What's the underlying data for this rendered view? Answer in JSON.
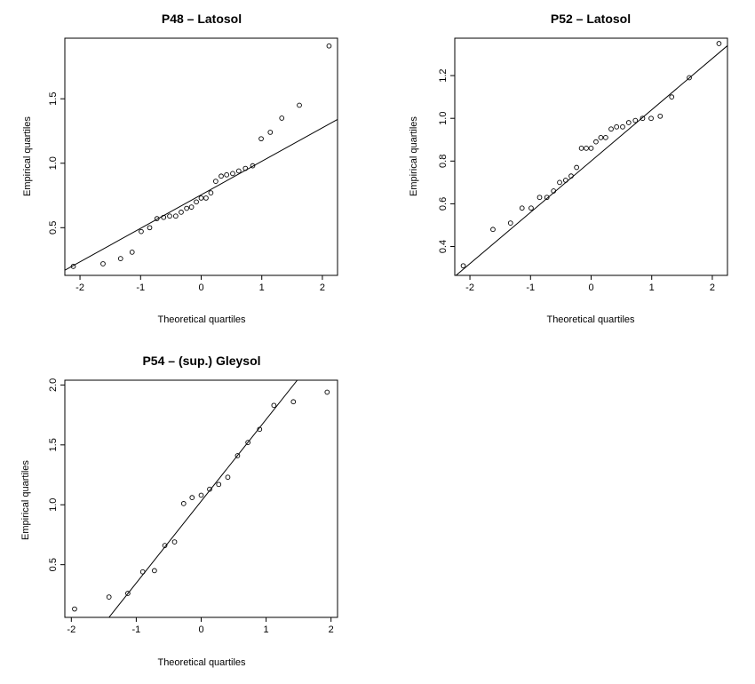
{
  "chart_data": [
    {
      "type": "scatter",
      "title": "P48 – Latosol",
      "xlabel": "Theoretical quartiles",
      "ylabel": "Empirical quartiles",
      "xlim": [
        -2.25,
        2.25
      ],
      "ylim": [
        0.13,
        1.97
      ],
      "xticks": [
        -2,
        -1,
        0,
        1,
        2
      ],
      "xtick_labels": [
        "-2",
        "-1",
        "0",
        "1",
        "2"
      ],
      "yticks": [
        0.5,
        1.0,
        1.5
      ],
      "ytick_labels": [
        "0.5",
        "1.0",
        "1.5"
      ],
      "grid": false,
      "points": {
        "x": [
          -2.11,
          -1.62,
          -1.33,
          -1.14,
          -0.99,
          -0.85,
          -0.73,
          -0.62,
          -0.52,
          -0.42,
          -0.33,
          -0.24,
          -0.16,
          -0.08,
          0.0,
          0.08,
          0.16,
          0.24,
          0.33,
          0.42,
          0.52,
          0.62,
          0.73,
          0.85,
          0.99,
          1.14,
          1.33,
          1.62,
          2.11
        ],
        "y": [
          0.2,
          0.22,
          0.26,
          0.31,
          0.47,
          0.5,
          0.57,
          0.58,
          0.59,
          0.59,
          0.62,
          0.65,
          0.66,
          0.7,
          0.73,
          0.73,
          0.77,
          0.86,
          0.9,
          0.91,
          0.92,
          0.94,
          0.96,
          0.98,
          1.19,
          1.24,
          1.35,
          1.45,
          1.91
        ]
      },
      "reference_line": {
        "x": [
          -2.25,
          2.25
        ],
        "y": [
          0.17,
          1.34
        ]
      }
    },
    {
      "type": "scatter",
      "title": "P52 – Latosol",
      "xlabel": "Theoretical quartiles",
      "ylabel": "Empirical quartiles",
      "xlim": [
        -2.25,
        2.25
      ],
      "ylim": [
        0.265,
        1.375
      ],
      "xticks": [
        -2,
        -1,
        0,
        1,
        2
      ],
      "xtick_labels": [
        "-2",
        "-1",
        "0",
        "1",
        "2"
      ],
      "yticks": [
        0.4,
        0.6,
        0.8,
        1.0,
        1.2
      ],
      "ytick_labels": [
        "0.4",
        "0.6",
        "0.8",
        "1.0",
        "1.2"
      ],
      "grid": false,
      "points": {
        "x": [
          -2.11,
          -1.62,
          -1.33,
          -1.14,
          -0.99,
          -0.85,
          -0.73,
          -0.62,
          -0.52,
          -0.42,
          -0.33,
          -0.24,
          -0.16,
          -0.08,
          0.0,
          0.08,
          0.16,
          0.24,
          0.33,
          0.42,
          0.52,
          0.62,
          0.73,
          0.85,
          0.99,
          1.14,
          1.33,
          1.62,
          2.11
        ],
        "y": [
          0.31,
          0.48,
          0.51,
          0.58,
          0.58,
          0.63,
          0.63,
          0.66,
          0.7,
          0.71,
          0.73,
          0.77,
          0.86,
          0.86,
          0.86,
          0.89,
          0.91,
          0.91,
          0.95,
          0.96,
          0.96,
          0.98,
          0.99,
          1.0,
          1.0,
          1.01,
          1.1,
          1.19,
          1.35
        ]
      },
      "reference_line": {
        "x": [
          -2.25,
          2.25
        ],
        "y": [
          0.26,
          1.34
        ]
      }
    },
    {
      "type": "scatter",
      "title": "P54 – (sup.) Gleysol",
      "xlabel": "Theoretical quartiles",
      "ylabel": "Empirical quartiles",
      "xlim": [
        -2.1,
        2.1
      ],
      "ylim": [
        0.06,
        2.04
      ],
      "xticks": [
        -2,
        -1,
        0,
        1,
        2
      ],
      "xtick_labels": [
        "-2",
        "-1",
        "0",
        "1",
        "2"
      ],
      "yticks": [
        0.5,
        1.0,
        1.5,
        2.0
      ],
      "ytick_labels": [
        "0.5",
        "1.0",
        "1.5",
        "2.0"
      ],
      "grid": false,
      "points": {
        "x": [
          -1.95,
          -1.42,
          -1.13,
          -0.9,
          -0.72,
          -0.56,
          -0.41,
          -0.27,
          -0.14,
          0.0,
          0.13,
          0.27,
          0.41,
          0.56,
          0.72,
          0.9,
          1.12,
          1.42,
          1.94
        ],
        "y": [
          0.13,
          0.23,
          0.26,
          0.44,
          0.45,
          0.66,
          0.69,
          1.01,
          1.06,
          1.08,
          1.13,
          1.17,
          1.23,
          1.41,
          1.52,
          1.63,
          1.83,
          1.86,
          1.94
        ]
      },
      "reference_line": {
        "x": [
          -1.42,
          1.48
        ],
        "y": [
          0.06,
          2.04
        ]
      }
    }
  ]
}
